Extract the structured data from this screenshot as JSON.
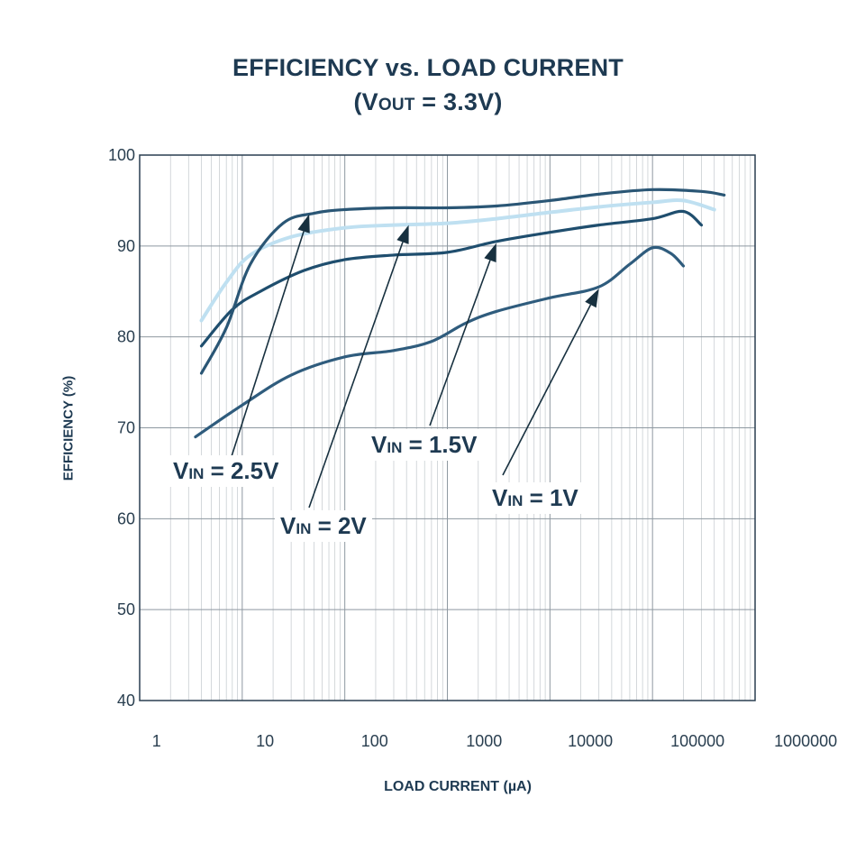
{
  "chart_data": {
    "type": "line",
    "title": "EFFICIENCY vs. LOAD CURRENT",
    "subtitle": {
      "prefix": "(V",
      "sub": "OUT",
      "suffix": " = 3.3V)"
    },
    "xlabel": "LOAD CURRENT (µA)",
    "ylabel": "EFFICIENCY (%)",
    "x_scale": "log",
    "xlim": [
      1,
      1000000
    ],
    "ylim": [
      40,
      100
    ],
    "grid": true,
    "x_ticks": [
      "1",
      "10",
      "100",
      "1000",
      "10000",
      "100000",
      "1000000"
    ],
    "y_ticks": [
      "40",
      "50",
      "60",
      "70",
      "80",
      "90",
      "100"
    ],
    "series": [
      {
        "name": "VIN = 1V",
        "color": "#2f5c7d",
        "x": [
          3.5,
          10,
          30,
          100,
          300,
          700,
          1500,
          3000,
          10000,
          30000,
          60000,
          100000,
          150000,
          200000
        ],
        "y": [
          69,
          72.5,
          75.8,
          77.8,
          78.5,
          79.5,
          81.5,
          82.8,
          84.3,
          85.5,
          88,
          89.8,
          89.2,
          87.8
        ]
      },
      {
        "name": "VIN = 1.5V",
        "color": "#1f4e6e",
        "x": [
          4,
          8,
          15,
          40,
          100,
          300,
          1000,
          3000,
          10000,
          30000,
          100000,
          200000,
          300000
        ],
        "y": [
          79,
          83,
          85,
          87.3,
          88.5,
          89,
          89.3,
          90.5,
          91.5,
          92.3,
          93,
          93.8,
          92.3
        ]
      },
      {
        "name": "VIN = 2V",
        "color": "#bfe0f1",
        "x": [
          4,
          7,
          12,
          30,
          100,
          300,
          1000,
          3000,
          10000,
          30000,
          100000,
          200000,
          400000
        ],
        "y": [
          81.8,
          86,
          89,
          91,
          92,
          92.3,
          92.5,
          93,
          93.7,
          94.3,
          94.8,
          95,
          94
        ],
        "width": 4
      },
      {
        "name": "VIN = 2.5V",
        "color": "#2a5675",
        "x": [
          4,
          7,
          12,
          25,
          50,
          100,
          300,
          1000,
          3000,
          10000,
          30000,
          100000,
          300000,
          500000
        ],
        "y": [
          76,
          81,
          88,
          92.5,
          93.6,
          94,
          94.2,
          94.2,
          94.4,
          95,
          95.7,
          96.2,
          96,
          95.6
        ]
      }
    ],
    "annotations": [
      {
        "main": "V",
        "sub": "IN",
        "rest": " = 2.5V",
        "target": [
          45,
          93.5
        ],
        "from": [
          250,
          528
        ],
        "box": [
          186,
          505
        ]
      },
      {
        "main": "V",
        "sub": "IN",
        "rest": " = 2V",
        "target": [
          420,
          92.3
        ],
        "from": [
          343,
          563
        ],
        "box": [
          305,
          566
        ]
      },
      {
        "main": "V",
        "sub": "IN",
        "rest": " = 1.5V",
        "target": [
          3000,
          90.3
        ],
        "from": [
          477,
          472
        ],
        "box": [
          406,
          476
        ]
      },
      {
        "main": "V",
        "sub": "IN",
        "rest": " = 1V",
        "target": [
          30000,
          85.3
        ],
        "from": [
          558,
          527
        ],
        "box": [
          540,
          535
        ]
      }
    ]
  }
}
